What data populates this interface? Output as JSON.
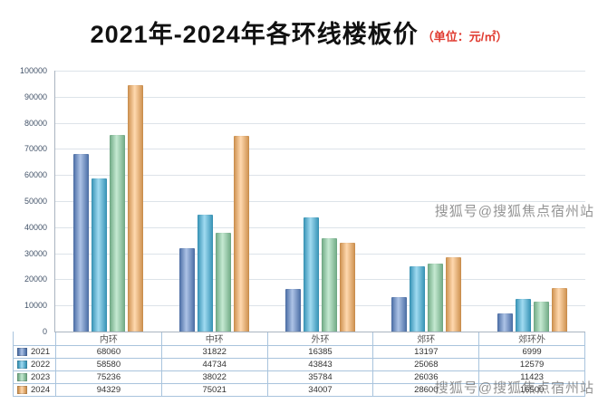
{
  "title": "2021年-2024年各环线楼板价",
  "unit": "（单位：元/㎡）",
  "watermark": "搜狐号@搜狐焦点宿州站",
  "chart_data": {
    "type": "bar",
    "title": "2021年-2024年各环线楼板价",
    "ylabel": "元/㎡",
    "xlabel": "",
    "categories": [
      "内环",
      "中环",
      "外环",
      "郊环",
      "郊环外"
    ],
    "series": [
      {
        "name": "2021",
        "color": "#5b87cd",
        "values": [
          68060,
          31822,
          16385,
          13197,
          6999
        ]
      },
      {
        "name": "2022",
        "color": "#41b6e2",
        "values": [
          58580,
          44734,
          43843,
          25068,
          12579
        ]
      },
      {
        "name": "2023",
        "color": "#8ad3a4",
        "values": [
          75236,
          38022,
          35784,
          26036,
          11423
        ]
      },
      {
        "name": "2024",
        "color": "#ffb25e",
        "values": [
          94329,
          75021,
          34007,
          28600,
          16500
        ]
      }
    ],
    "ylim": [
      0,
      100000
    ],
    "ytick_step": 10000,
    "grid": true,
    "legend_position": "table-left",
    "table_rows": [
      {
        "name": "2021",
        "display": [
          "68060",
          "31822",
          "16385",
          "13197",
          "6999"
        ]
      },
      {
        "name": "2022",
        "display": [
          "58580",
          "44734",
          "43843",
          "25068",
          "12579"
        ]
      },
      {
        "name": "2023",
        "display": [
          "75236",
          "38022",
          "35784",
          "26036",
          "11423"
        ]
      },
      {
        "name": "2024",
        "display": [
          "94329",
          "75021",
          "34007",
          "28600",
          "16500"
        ]
      }
    ]
  }
}
